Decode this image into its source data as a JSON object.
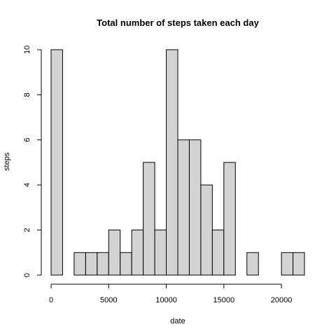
{
  "chart_data": {
    "type": "bar",
    "title": "Total number of steps taken each day",
    "xlabel": "date",
    "ylabel": "steps",
    "bin_width": 1000,
    "bins_start": [
      0,
      1000,
      2000,
      3000,
      4000,
      5000,
      6000,
      7000,
      8000,
      9000,
      10000,
      11000,
      12000,
      13000,
      14000,
      15000,
      16000,
      17000,
      18000,
      19000,
      20000,
      21000
    ],
    "values": [
      10,
      0,
      1,
      1,
      1,
      2,
      1,
      2,
      5,
      2,
      10,
      6,
      6,
      4,
      2,
      5,
      0,
      1,
      0,
      0,
      1,
      1
    ],
    "xlim": [
      0,
      22000
    ],
    "ylim": [
      0,
      10
    ],
    "x_ticks": [
      0,
      5000,
      10000,
      15000,
      20000
    ],
    "y_ticks": [
      0,
      2,
      4,
      6,
      8,
      10
    ],
    "colors": {
      "bar_fill": "#d3d3d3",
      "bar_stroke": "#000000"
    },
    "grid": false
  }
}
